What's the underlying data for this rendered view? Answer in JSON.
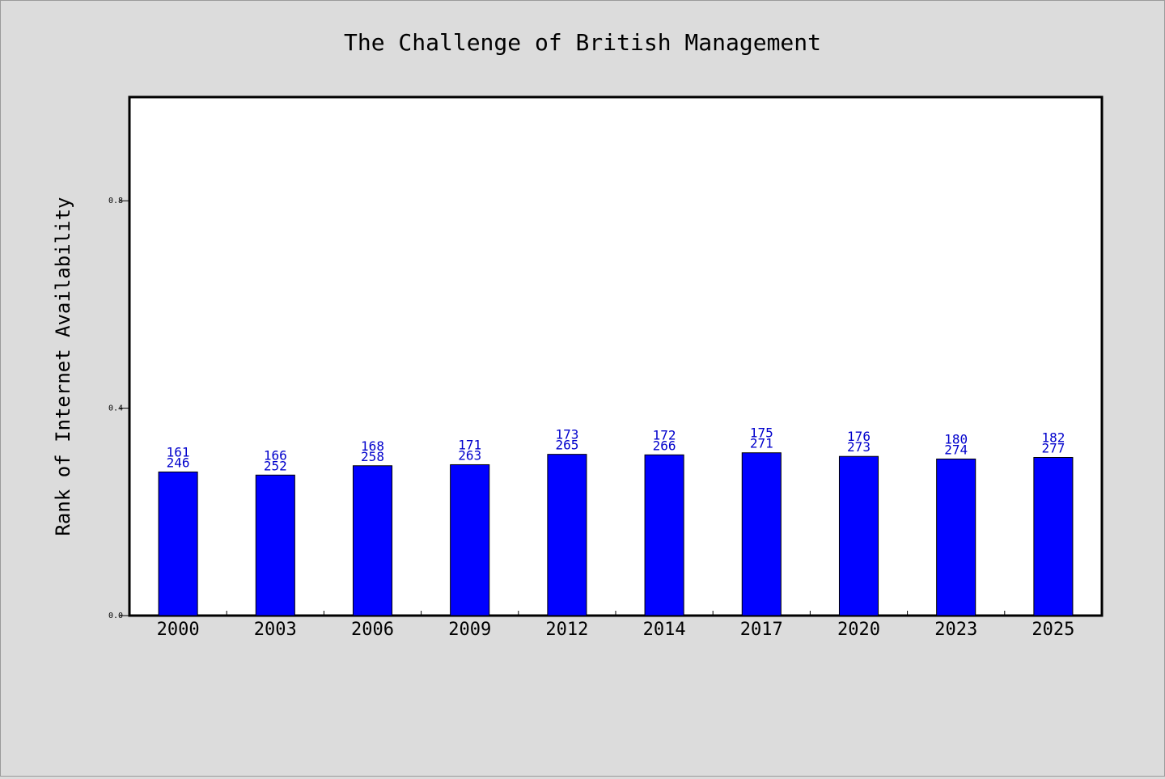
{
  "chart_data": {
    "type": "bar",
    "title": "The Challenge of British Management",
    "xlabel": "",
    "ylabel": "Rank of Internet Availability",
    "ylim": [
      0,
      1.0
    ],
    "yticks": [
      0.0,
      0.4,
      0.8
    ],
    "ytick_labels": [
      "0.0",
      "0.4",
      "0.8"
    ],
    "grid": false,
    "categories": [
      "2000",
      "2003",
      "2006",
      "2009",
      "2012",
      "2014",
      "2017",
      "2020",
      "2023",
      "2025"
    ],
    "values": [
      0.277,
      0.271,
      0.289,
      0.291,
      0.311,
      0.31,
      0.314,
      0.307,
      0.302,
      0.305
    ],
    "label_top": [
      "161",
      "166",
      "168",
      "171",
      "173",
      "172",
      "175",
      "176",
      "180",
      "182"
    ],
    "label_bottom": [
      "246",
      "252",
      "258",
      "263",
      "265",
      "266",
      "271",
      "273",
      "274",
      "277"
    ],
    "colors": {
      "bar": "#0000ff",
      "bar_edge": "#000000",
      "label": "#0000cc",
      "background": "#dcdcdc",
      "plot_area": "#ffffff"
    }
  }
}
